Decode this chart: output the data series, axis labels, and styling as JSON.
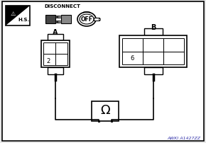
{
  "bg_color": "#e8e8e8",
  "border_color": "#000000",
  "line_color": "#000000",
  "white": "#ffffff",
  "gray_dark": "#444444",
  "gray_mid": "#888888",
  "connector_a_label": "A",
  "connector_a_pin": "2",
  "connector_b_label": "B",
  "connector_b_pin": "6",
  "omega_label": "Ω",
  "watermark": "AWKI A1427ZZ",
  "watermark_color": "#3333aa",
  "disconnect_text": "DISCONNECT",
  "hs_text": "H.S.",
  "off_text": "OFF"
}
